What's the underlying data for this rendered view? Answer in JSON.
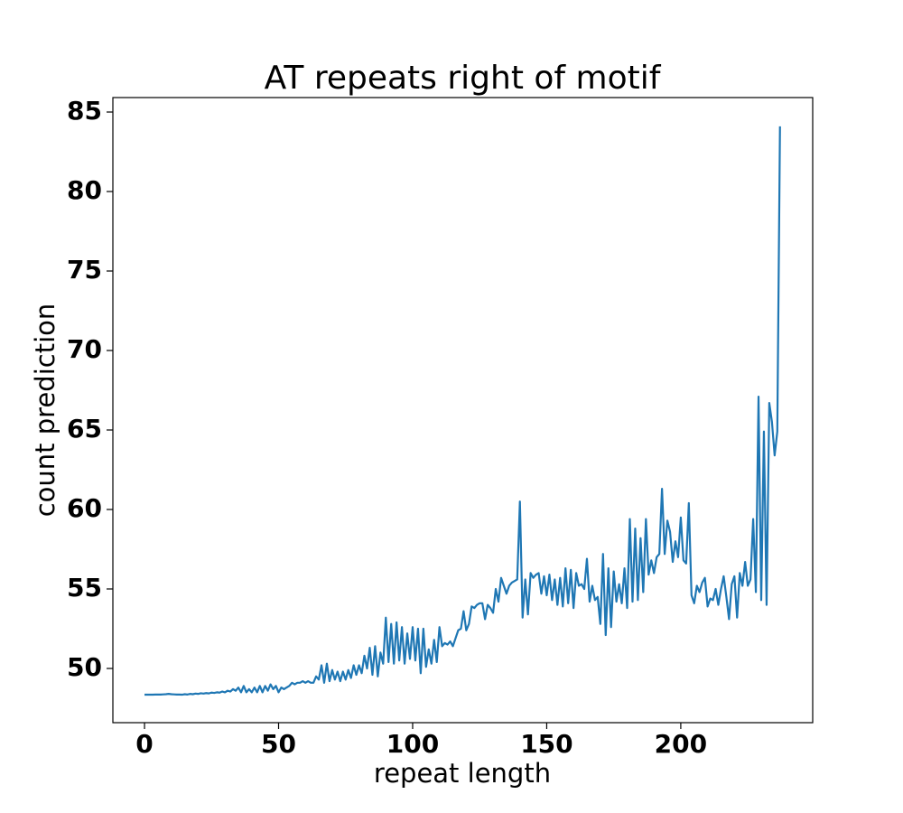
{
  "chart_data": {
    "type": "line",
    "title": "AT repeats right of motif",
    "x_label": "repeat length",
    "y_label": "count prediction",
    "color": "#1f77b4",
    "x": [
      0,
      1,
      2,
      3,
      4,
      5,
      6,
      7,
      8,
      9,
      10,
      11,
      12,
      13,
      14,
      15,
      16,
      17,
      18,
      19,
      20,
      21,
      22,
      23,
      24,
      25,
      26,
      27,
      28,
      29,
      30,
      31,
      32,
      33,
      34,
      35,
      36,
      37,
      38,
      39,
      40,
      41,
      42,
      43,
      44,
      45,
      46,
      47,
      48,
      49,
      50,
      51,
      52,
      53,
      54,
      55,
      56,
      57,
      58,
      59,
      60,
      61,
      62,
      63,
      64,
      65,
      66,
      67,
      68,
      69,
      70,
      71,
      72,
      73,
      74,
      75,
      76,
      77,
      78,
      79,
      80,
      81,
      82,
      83,
      84,
      85,
      86,
      87,
      88,
      89,
      90,
      91,
      92,
      93,
      94,
      95,
      96,
      97,
      98,
      99,
      100,
      101,
      102,
      103,
      104,
      105,
      106,
      107,
      108,
      109,
      110,
      111,
      112,
      113,
      114,
      115,
      116,
      117,
      118,
      119,
      120,
      121,
      122,
      123,
      124,
      125,
      126,
      127,
      128,
      129,
      130,
      131,
      132,
      133,
      134,
      135,
      136,
      137,
      138,
      139,
      140,
      141,
      142,
      143,
      144,
      145,
      146,
      147,
      148,
      149,
      150,
      151,
      152,
      153,
      154,
      155,
      156,
      157,
      158,
      159,
      160,
      161,
      162,
      163,
      164,
      165,
      166,
      167,
      168,
      169,
      170,
      171,
      172,
      173,
      174,
      175,
      176,
      177,
      178,
      179,
      180,
      181,
      182,
      183,
      184,
      185,
      186,
      187,
      188,
      189,
      190,
      191,
      192,
      193,
      194,
      195,
      196,
      197,
      198,
      199,
      200,
      201,
      202,
      203,
      204,
      205,
      206,
      207,
      208,
      209,
      210,
      211,
      212,
      213,
      214,
      215,
      216,
      217,
      218,
      219,
      220,
      221,
      222,
      223,
      224,
      225,
      226,
      227,
      228,
      229,
      230,
      231,
      232,
      233,
      234,
      235,
      236,
      237
    ],
    "values": [
      48.35,
      48.35,
      48.35,
      48.35,
      48.36,
      48.36,
      48.36,
      48.37,
      48.38,
      48.4,
      48.38,
      48.37,
      48.36,
      48.36,
      48.35,
      48.38,
      48.36,
      48.4,
      48.38,
      48.42,
      48.4,
      48.44,
      48.42,
      48.45,
      48.43,
      48.48,
      48.46,
      48.5,
      48.48,
      48.55,
      48.5,
      48.6,
      48.55,
      48.7,
      48.6,
      48.8,
      48.5,
      48.9,
      48.5,
      48.7,
      48.5,
      48.8,
      48.5,
      48.9,
      48.5,
      48.9,
      48.6,
      49.0,
      48.7,
      48.9,
      48.5,
      48.8,
      48.7,
      48.8,
      48.9,
      49.1,
      49.0,
      49.1,
      49.1,
      49.2,
      49.1,
      49.2,
      49.1,
      49.1,
      49.5,
      49.3,
      50.2,
      49.1,
      50.3,
      49.2,
      49.9,
      49.3,
      49.8,
      49.2,
      49.8,
      49.3,
      49.9,
      49.4,
      50.2,
      49.6,
      50.2,
      49.7,
      50.8,
      50.0,
      51.3,
      49.6,
      51.4,
      49.5,
      51.0,
      50.3,
      53.2,
      50.4,
      52.8,
      50.3,
      52.9,
      50.5,
      52.6,
      50.3,
      52.2,
      50.6,
      52.6,
      50.5,
      52.5,
      49.7,
      52.5,
      50.1,
      51.2,
      50.3,
      51.8,
      50.4,
      52.6,
      51.4,
      51.6,
      51.5,
      51.7,
      51.4,
      51.9,
      52.4,
      52.5,
      53.6,
      52.4,
      52.8,
      53.9,
      53.8,
      54.0,
      54.1,
      54.1,
      53.1,
      54.0,
      53.8,
      53.5,
      55.0,
      54.2,
      55.7,
      55.2,
      54.7,
      55.2,
      55.4,
      55.5,
      55.6,
      60.5,
      53.2,
      55.6,
      53.4,
      56.0,
      55.7,
      55.9,
      56.0,
      54.7,
      55.8,
      54.6,
      55.9,
      54.3,
      55.6,
      54.0,
      55.7,
      53.9,
      56.3,
      54.1,
      56.2,
      53.8,
      56.0,
      55.2,
      55.3,
      55.0,
      56.9,
      54.2,
      55.2,
      54.3,
      54.5,
      52.8,
      57.2,
      52.1,
      56.3,
      52.6,
      56.1,
      54.2,
      55.3,
      54.1,
      56.3,
      53.8,
      59.4,
      54.2,
      58.8,
      54.3,
      58.2,
      54.8,
      59.4,
      55.9,
      56.8,
      56.0,
      57.0,
      57.2,
      61.3,
      57.2,
      59.3,
      58.6,
      56.7,
      58.0,
      57.0,
      59.5,
      56.8,
      56.6,
      60.4,
      54.6,
      54.1,
      55.2,
      54.8,
      55.4,
      55.7,
      53.9,
      54.4,
      54.3,
      55.0,
      54.0,
      55.0,
      55.8,
      54.5,
      53.1,
      55.3,
      55.8,
      53.2,
      56.0,
      55.2,
      56.7,
      55.2,
      55.6,
      59.4,
      54.8,
      67.1,
      54.3,
      64.9,
      54.0,
      66.7,
      65.5,
      63.4,
      64.9,
      84.1
    ],
    "xlim": [
      -11.8,
      249.2
    ],
    "ylim": [
      46.59,
      85.91
    ],
    "xticks": [
      0,
      50,
      100,
      150,
      200
    ],
    "yticks": [
      50,
      55,
      60,
      65,
      70,
      75,
      80,
      85
    ]
  }
}
